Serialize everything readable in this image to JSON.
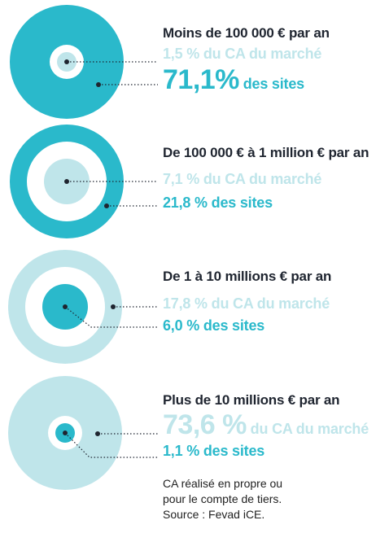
{
  "colors": {
    "light": "#bfe5ea",
    "teal": "#2ab9cb",
    "dark_text": "#1f2530",
    "dot": "#1f2530"
  },
  "segments": [
    {
      "title": "Moins de 100 000 € par an",
      "ca_value": "1,5 %",
      "ca_label": "du CA du marché",
      "sites_value": "71,1%",
      "sites_label": "des sites",
      "ca_share": 1.5,
      "sites_share": 71.1
    },
    {
      "title": "De 100 000 € à 1 million € par an",
      "ca_value": "7,1 %",
      "ca_label": "du CA du marché",
      "sites_value": "21,8 %",
      "sites_label": "des sites",
      "ca_share": 7.1,
      "sites_share": 21.8
    },
    {
      "title": "De 1 à 10 millions € par an",
      "ca_value": "17,8 %",
      "ca_label": "du CA du marché",
      "sites_value": "6,0 %",
      "sites_label": "des sites",
      "ca_share": 17.8,
      "sites_share": 6.0
    },
    {
      "title": "Plus de 10 millions € par an",
      "ca_value": "73,6 %",
      "ca_label": "du CA du marché",
      "sites_value": "1,1 %",
      "sites_label": "des sites",
      "ca_share": 73.6,
      "sites_share": 1.1
    }
  ],
  "source": {
    "line1": "CA réalisé en propre ou",
    "line2": "pour le compte de tiers.",
    "line3": "Source : Fevad iCE."
  }
}
